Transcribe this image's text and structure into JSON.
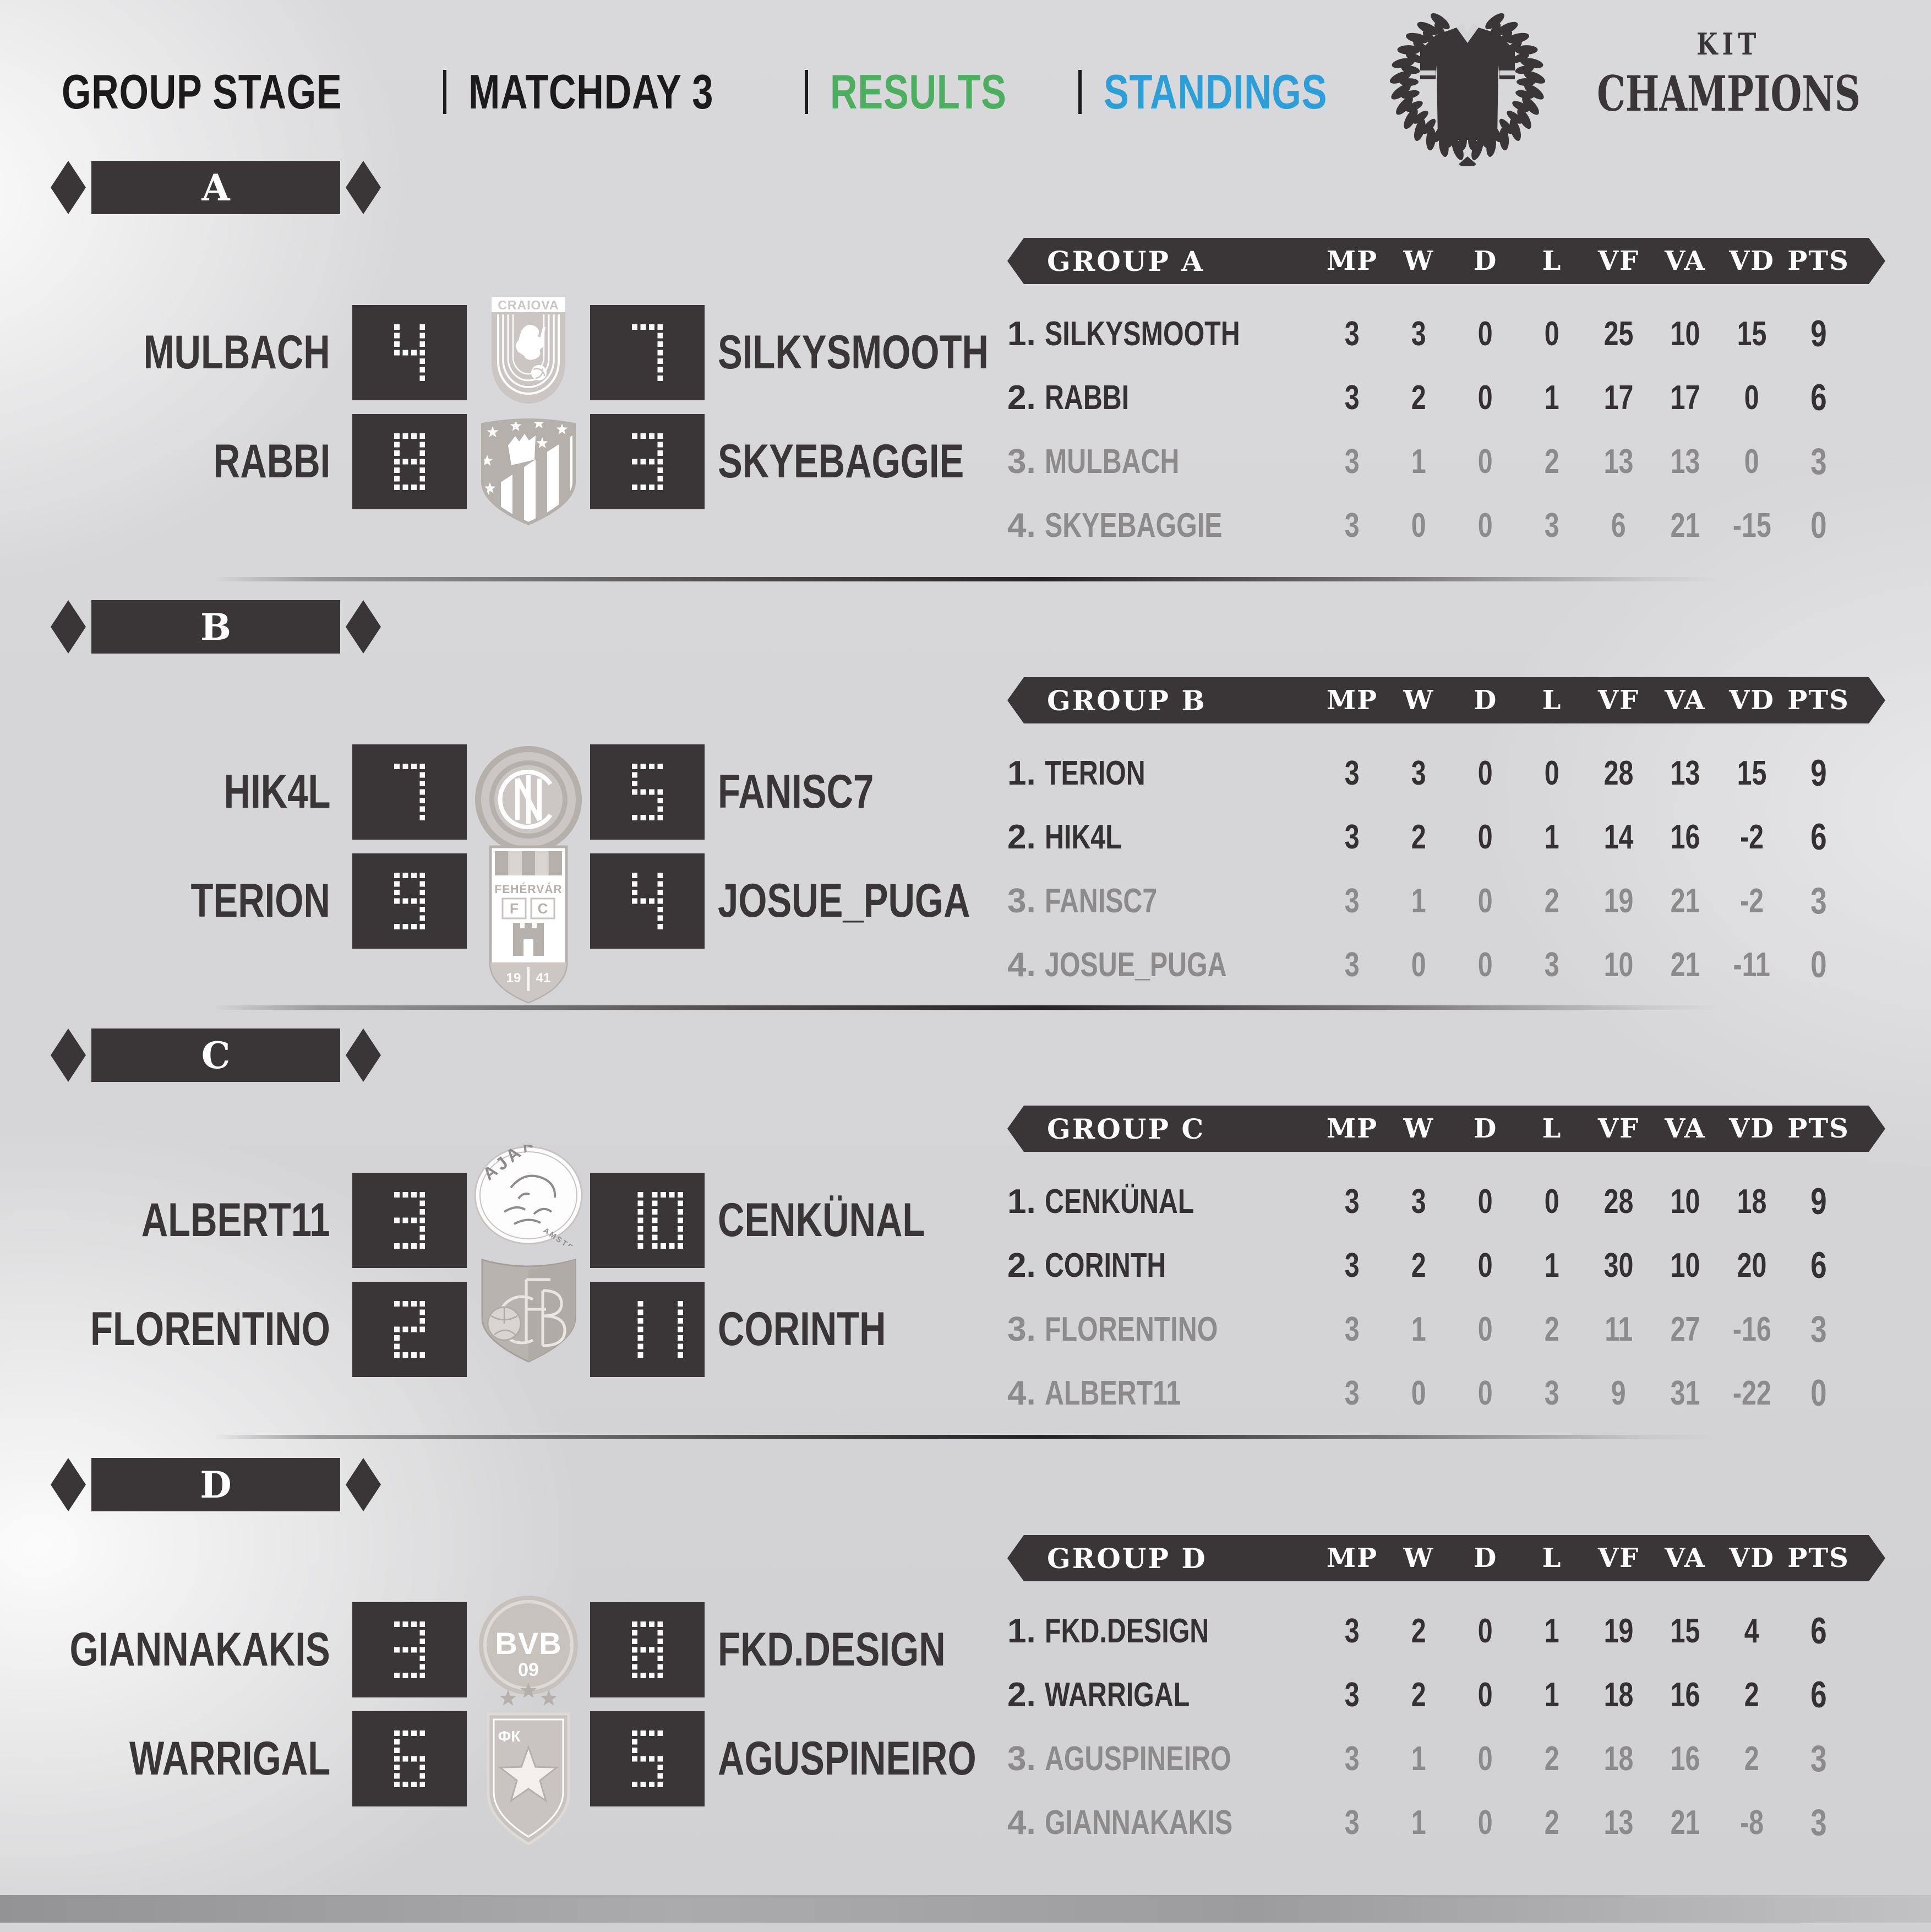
{
  "header": {
    "group_stage": "GROUP STAGE",
    "matchday": "MATCHDAY 3",
    "results": "RESULTS",
    "standings": "STANDINGS"
  },
  "colors": {
    "green": "#4caf60",
    "blue": "#2d9fd8",
    "dark": "#3a3637",
    "muted_row": "#8d8a8b"
  },
  "logo": {
    "kit": "KIT",
    "champions": "CHAMPIONS",
    "icon": "laurel-wreath-jersey-icon"
  },
  "columns": [
    "MP",
    "W",
    "D",
    "L",
    "VF",
    "VA",
    "VD",
    "PTS"
  ],
  "badges": {
    "craiova": {
      "icon": "club-badge-craiova",
      "label": "CRAIOVA"
    },
    "atletico": {
      "icon": "club-badge-atletico",
      "label": ""
    },
    "inter": {
      "icon": "club-badge-inter",
      "label": ""
    },
    "fehervar": {
      "icon": "club-badge-fehervar",
      "label": "FEHÉRVÁR",
      "fc": "F C",
      "year_left": "19",
      "year_right": "41"
    },
    "ajax": {
      "icon": "club-badge-ajax",
      "label": "AJAX",
      "sub": "AMSTERDAM"
    },
    "fb": {
      "icon": "club-badge-fb",
      "label": "B"
    },
    "bvb": {
      "icon": "club-badge-bvb",
      "label": "BVB",
      "sub": "09"
    },
    "red_star": {
      "icon": "club-badge-red-star",
      "label": "ФК"
    }
  },
  "groups": [
    {
      "letter": "A",
      "title": "GROUP A",
      "matches": [
        {
          "home": "MULBACH",
          "home_score": "4",
          "away_score": "7",
          "away": "SILKYSMOOTH",
          "badge": "craiova"
        },
        {
          "home": "RABBI",
          "home_score": "8",
          "away_score": "3",
          "away": "SKYEBAGGIE",
          "badge": "atletico"
        }
      ],
      "standings": [
        {
          "rank": "1.",
          "team": "SILKYSMOOTH",
          "mp": "3",
          "w": "3",
          "d": "0",
          "l": "0",
          "vf": "25",
          "va": "10",
          "vd": "15",
          "pts": "9"
        },
        {
          "rank": "2.",
          "team": "RABBI",
          "mp": "3",
          "w": "2",
          "d": "0",
          "l": "1",
          "vf": "17",
          "va": "17",
          "vd": "0",
          "pts": "6"
        },
        {
          "rank": "3.",
          "team": "MULBACH",
          "mp": "3",
          "w": "1",
          "d": "0",
          "l": "2",
          "vf": "13",
          "va": "13",
          "vd": "0",
          "pts": "3"
        },
        {
          "rank": "4.",
          "team": "SKYEBAGGIE",
          "mp": "3",
          "w": "0",
          "d": "0",
          "l": "3",
          "vf": "6",
          "va": "21",
          "vd": "-15",
          "pts": "0"
        }
      ]
    },
    {
      "letter": "B",
      "title": "GROUP B",
      "matches": [
        {
          "home": "HIK4L",
          "home_score": "7",
          "away_score": "5",
          "away": "FANISC7",
          "badge": "inter"
        },
        {
          "home": "TERION",
          "home_score": "9",
          "away_score": "4",
          "away": "JOSUE_PUGA",
          "badge": "fehervar"
        }
      ],
      "standings": [
        {
          "rank": "1.",
          "team": "TERION",
          "mp": "3",
          "w": "3",
          "d": "0",
          "l": "0",
          "vf": "28",
          "va": "13",
          "vd": "15",
          "pts": "9"
        },
        {
          "rank": "2.",
          "team": "HIK4L",
          "mp": "3",
          "w": "2",
          "d": "0",
          "l": "1",
          "vf": "14",
          "va": "16",
          "vd": "-2",
          "pts": "6"
        },
        {
          "rank": "3.",
          "team": "FANISC7",
          "mp": "3",
          "w": "1",
          "d": "0",
          "l": "2",
          "vf": "19",
          "va": "21",
          "vd": "-2",
          "pts": "3"
        },
        {
          "rank": "4.",
          "team": "JOSUE_PUGA",
          "mp": "3",
          "w": "0",
          "d": "0",
          "l": "3",
          "vf": "10",
          "va": "21",
          "vd": "-11",
          "pts": "0"
        }
      ]
    },
    {
      "letter": "C",
      "title": "GROUP C",
      "matches": [
        {
          "home": "ALBERT11",
          "home_score": "3",
          "away_score": "10",
          "away": "CENKÜNAL",
          "badge": "ajax"
        },
        {
          "home": "FLORENTINO",
          "home_score": "2",
          "away_score": "11",
          "away": "CORINTH",
          "badge": "fb"
        }
      ],
      "standings": [
        {
          "rank": "1.",
          "team": "CENKÜNAL",
          "mp": "3",
          "w": "3",
          "d": "0",
          "l": "0",
          "vf": "28",
          "va": "10",
          "vd": "18",
          "pts": "9"
        },
        {
          "rank": "2.",
          "team": "CORINTH",
          "mp": "3",
          "w": "2",
          "d": "0",
          "l": "1",
          "vf": "30",
          "va": "10",
          "vd": "20",
          "pts": "6"
        },
        {
          "rank": "3.",
          "team": "FLORENTINO",
          "mp": "3",
          "w": "1",
          "d": "0",
          "l": "2",
          "vf": "11",
          "va": "27",
          "vd": "-16",
          "pts": "3"
        },
        {
          "rank": "4.",
          "team": "ALBERT11",
          "mp": "3",
          "w": "0",
          "d": "0",
          "l": "3",
          "vf": "9",
          "va": "31",
          "vd": "-22",
          "pts": "0"
        }
      ]
    },
    {
      "letter": "D",
      "title": "GROUP D",
      "matches": [
        {
          "home": "GIANNAKAKIS",
          "home_score": "3",
          "away_score": "8",
          "away": "FKD.DESIGN",
          "badge": "bvb"
        },
        {
          "home": "WARRIGAL",
          "home_score": "6",
          "away_score": "5",
          "away": "AGUSPINEIRO",
          "badge": "red_star"
        }
      ],
      "standings": [
        {
          "rank": "1.",
          "team": "FKD.DESIGN",
          "mp": "3",
          "w": "2",
          "d": "0",
          "l": "1",
          "vf": "19",
          "va": "15",
          "vd": "4",
          "pts": "6"
        },
        {
          "rank": "2.",
          "team": "WARRIGAL",
          "mp": "3",
          "w": "2",
          "d": "0",
          "l": "1",
          "vf": "18",
          "va": "16",
          "vd": "2",
          "pts": "6"
        },
        {
          "rank": "3.",
          "team": "AGUSPINEIRO",
          "mp": "3",
          "w": "1",
          "d": "0",
          "l": "2",
          "vf": "18",
          "va": "16",
          "vd": "2",
          "pts": "3"
        },
        {
          "rank": "4.",
          "team": "GIANNAKAKIS",
          "mp": "3",
          "w": "1",
          "d": "0",
          "l": "2",
          "vf": "13",
          "va": "21",
          "vd": "-8",
          "pts": "3"
        }
      ]
    }
  ]
}
